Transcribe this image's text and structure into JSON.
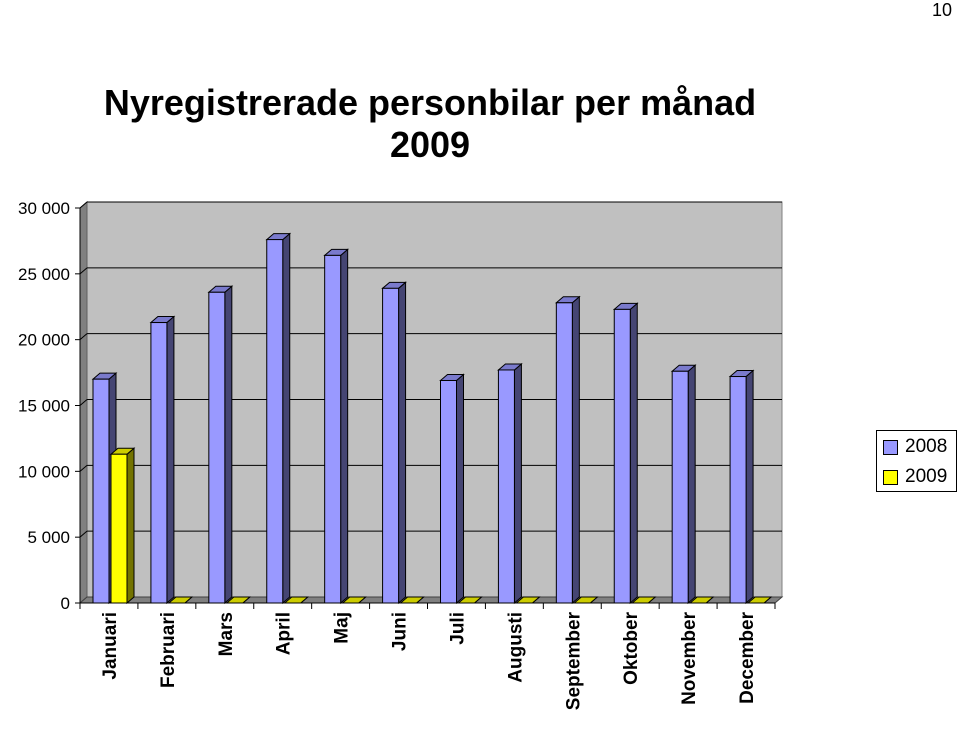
{
  "page_number": "10",
  "chart_data": {
    "type": "bar",
    "title": [
      "Nyregistrerade personbilar per månad",
      "2009"
    ],
    "xlabel": "",
    "ylabel": "",
    "ylim": [
      0,
      30000
    ],
    "y_ticks": [
      0,
      5000,
      10000,
      15000,
      20000,
      25000,
      30000
    ],
    "y_tick_labels": [
      "0",
      "5 000",
      "10 000",
      "15 000",
      "20 000",
      "25 000",
      "30 000"
    ],
    "categories": [
      "Januari",
      "Februari",
      "Mars",
      "April",
      "Maj",
      "Juni",
      "Juli",
      "Augusti",
      "September",
      "Oktober",
      "November",
      "December"
    ],
    "series": [
      {
        "name": "2008",
        "color": "#9999ff",
        "values": [
          17000,
          21300,
          23600,
          27600,
          26400,
          23900,
          16900,
          17700,
          22800,
          22300,
          17600,
          17200
        ]
      },
      {
        "name": "2009",
        "color": "#ffff00",
        "values": [
          11300,
          0,
          0,
          0,
          0,
          0,
          0,
          0,
          0,
          0,
          0,
          0
        ]
      }
    ],
    "grid": true,
    "legend_position": "right",
    "style": "3d-bar"
  }
}
